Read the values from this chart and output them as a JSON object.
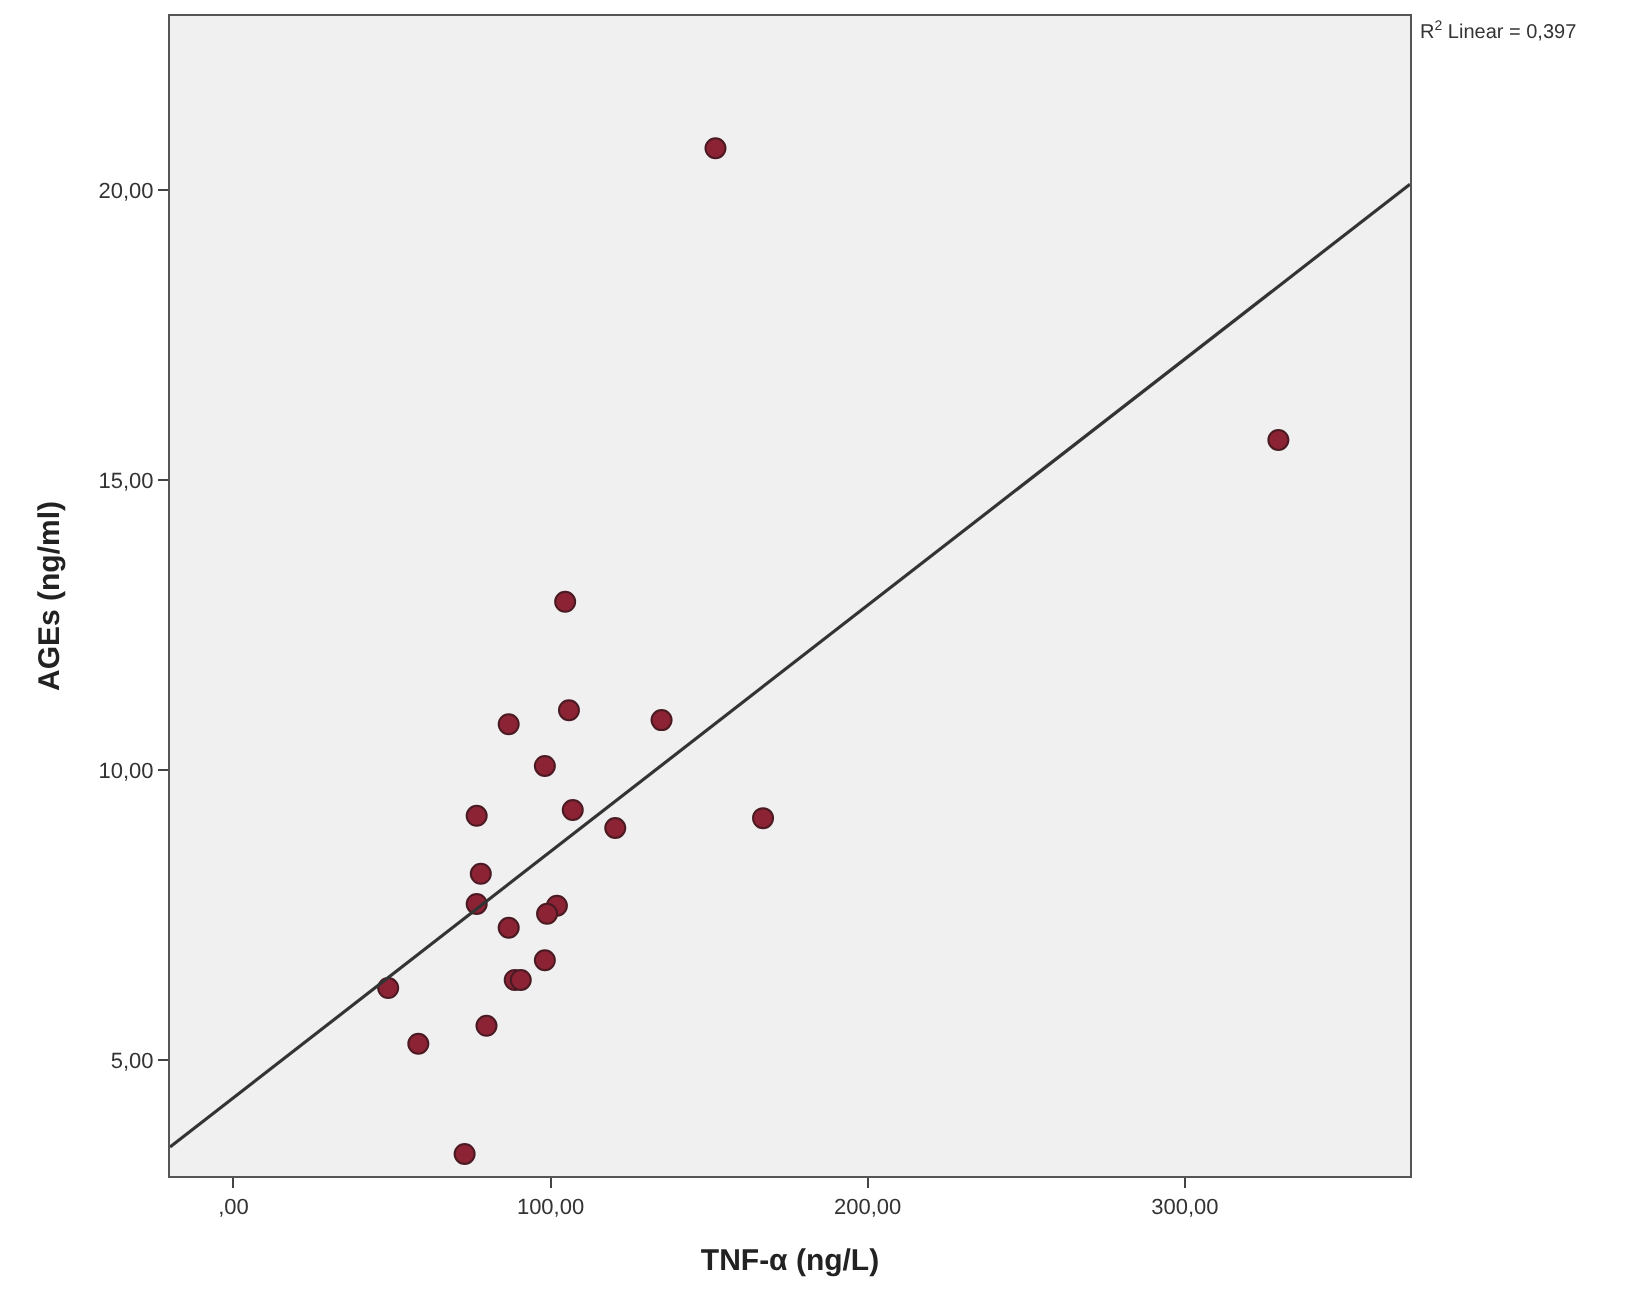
{
  "chart_data": {
    "type": "scatter",
    "xlabel": "TNF-α (ng/L)",
    "ylabel": "AGEs (ng/ml)",
    "annotations": [
      "R$^{2}$ Linear = 0,397"
    ],
    "xlim": [
      -20,
      371
    ],
    "ylim": [
      3,
      23
    ],
    "xticks": [
      {
        "value": 0,
        "label": ",00"
      },
      {
        "value": 100,
        "label": "100,00"
      },
      {
        "value": 200,
        "label": "200,00"
      },
      {
        "value": 300,
        "label": "300,00"
      }
    ],
    "yticks": [
      {
        "value": 5,
        "label": "5,00"
      },
      {
        "value": 10,
        "label": "10,00"
      },
      {
        "value": 15,
        "label": "15,00"
      },
      {
        "value": 20,
        "label": "20,00"
      }
    ],
    "grid": false,
    "marker": "circle",
    "series": [
      {
        "color": "#8b2335",
        "x": [
          152,
          329.5,
          104.6,
          86.8,
          105.8,
          135,
          98.2,
          76.7,
          107,
          120.4,
          167,
          78,
          76.7,
          102,
          98.9,
          86.8,
          98.2,
          88.7,
          90.6,
          48.8,
          79.8,
          58.3,
          72.9
        ],
        "values": [
          20.72,
          15.69,
          12.9,
          10.79,
          11.03,
          10.86,
          10.07,
          9.21,
          9.31,
          9.0,
          9.17,
          8.21,
          7.69,
          7.66,
          7.52,
          7.28,
          6.72,
          6.38,
          6.38,
          6.24,
          5.59,
          5.28,
          3.38
        ]
      },
      {
        "type": "line",
        "color": "#333333",
        "marker": "none",
        "x": [
          -20,
          371
        ],
        "values": [
          3.5,
          20.1
        ]
      }
    ]
  }
}
